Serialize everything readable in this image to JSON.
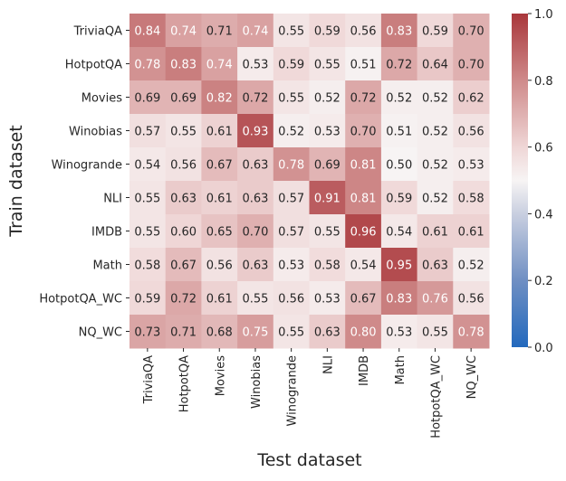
{
  "chart_data": {
    "type": "heatmap",
    "xlabel": "Test dataset",
    "ylabel": "Train dataset",
    "columns": [
      "TriviaQA",
      "HotpotQA",
      "Movies",
      "Winobias",
      "Winogrande",
      "NLI",
      "IMDB",
      "Math",
      "HotpotQA_WC",
      "NQ_WC"
    ],
    "rows": [
      "TriviaQA",
      "HotpotQA",
      "Movies",
      "Winobias",
      "Winogrande",
      "NLI",
      "IMDB",
      "Math",
      "HotpotQA_WC",
      "NQ_WC"
    ],
    "values": [
      [
        0.84,
        0.74,
        0.71,
        0.74,
        0.55,
        0.59,
        0.56,
        0.83,
        0.59,
        0.7
      ],
      [
        0.78,
        0.83,
        0.74,
        0.53,
        0.59,
        0.55,
        0.51,
        0.72,
        0.64,
        0.7
      ],
      [
        0.69,
        0.69,
        0.82,
        0.72,
        0.55,
        0.52,
        0.72,
        0.52,
        0.52,
        0.62
      ],
      [
        0.57,
        0.55,
        0.61,
        0.93,
        0.52,
        0.53,
        0.7,
        0.51,
        0.52,
        0.56
      ],
      [
        0.54,
        0.56,
        0.67,
        0.63,
        0.78,
        0.69,
        0.81,
        0.5,
        0.52,
        0.53
      ],
      [
        0.55,
        0.63,
        0.61,
        0.63,
        0.57,
        0.91,
        0.81,
        0.59,
        0.52,
        0.58
      ],
      [
        0.55,
        0.6,
        0.65,
        0.7,
        0.57,
        0.55,
        0.96,
        0.54,
        0.61,
        0.61
      ],
      [
        0.58,
        0.67,
        0.56,
        0.63,
        0.53,
        0.58,
        0.54,
        0.95,
        0.63,
        0.52
      ],
      [
        0.59,
        0.72,
        0.61,
        0.55,
        0.56,
        0.53,
        0.67,
        0.83,
        0.76,
        0.56
      ],
      [
        0.73,
        0.71,
        0.68,
        0.75,
        0.55,
        0.63,
        0.8,
        0.53,
        0.55,
        0.78
      ]
    ],
    "colorbar": {
      "range": [
        0.0,
        1.0
      ],
      "ticks": [
        "0.0",
        "0.2",
        "0.4",
        "0.6",
        "0.8",
        "1.0"
      ],
      "colormap": "vlag",
      "low_color": "#2369bd",
      "mid_color": "#f7f4f4",
      "high_color": "#a9373b"
    }
  }
}
